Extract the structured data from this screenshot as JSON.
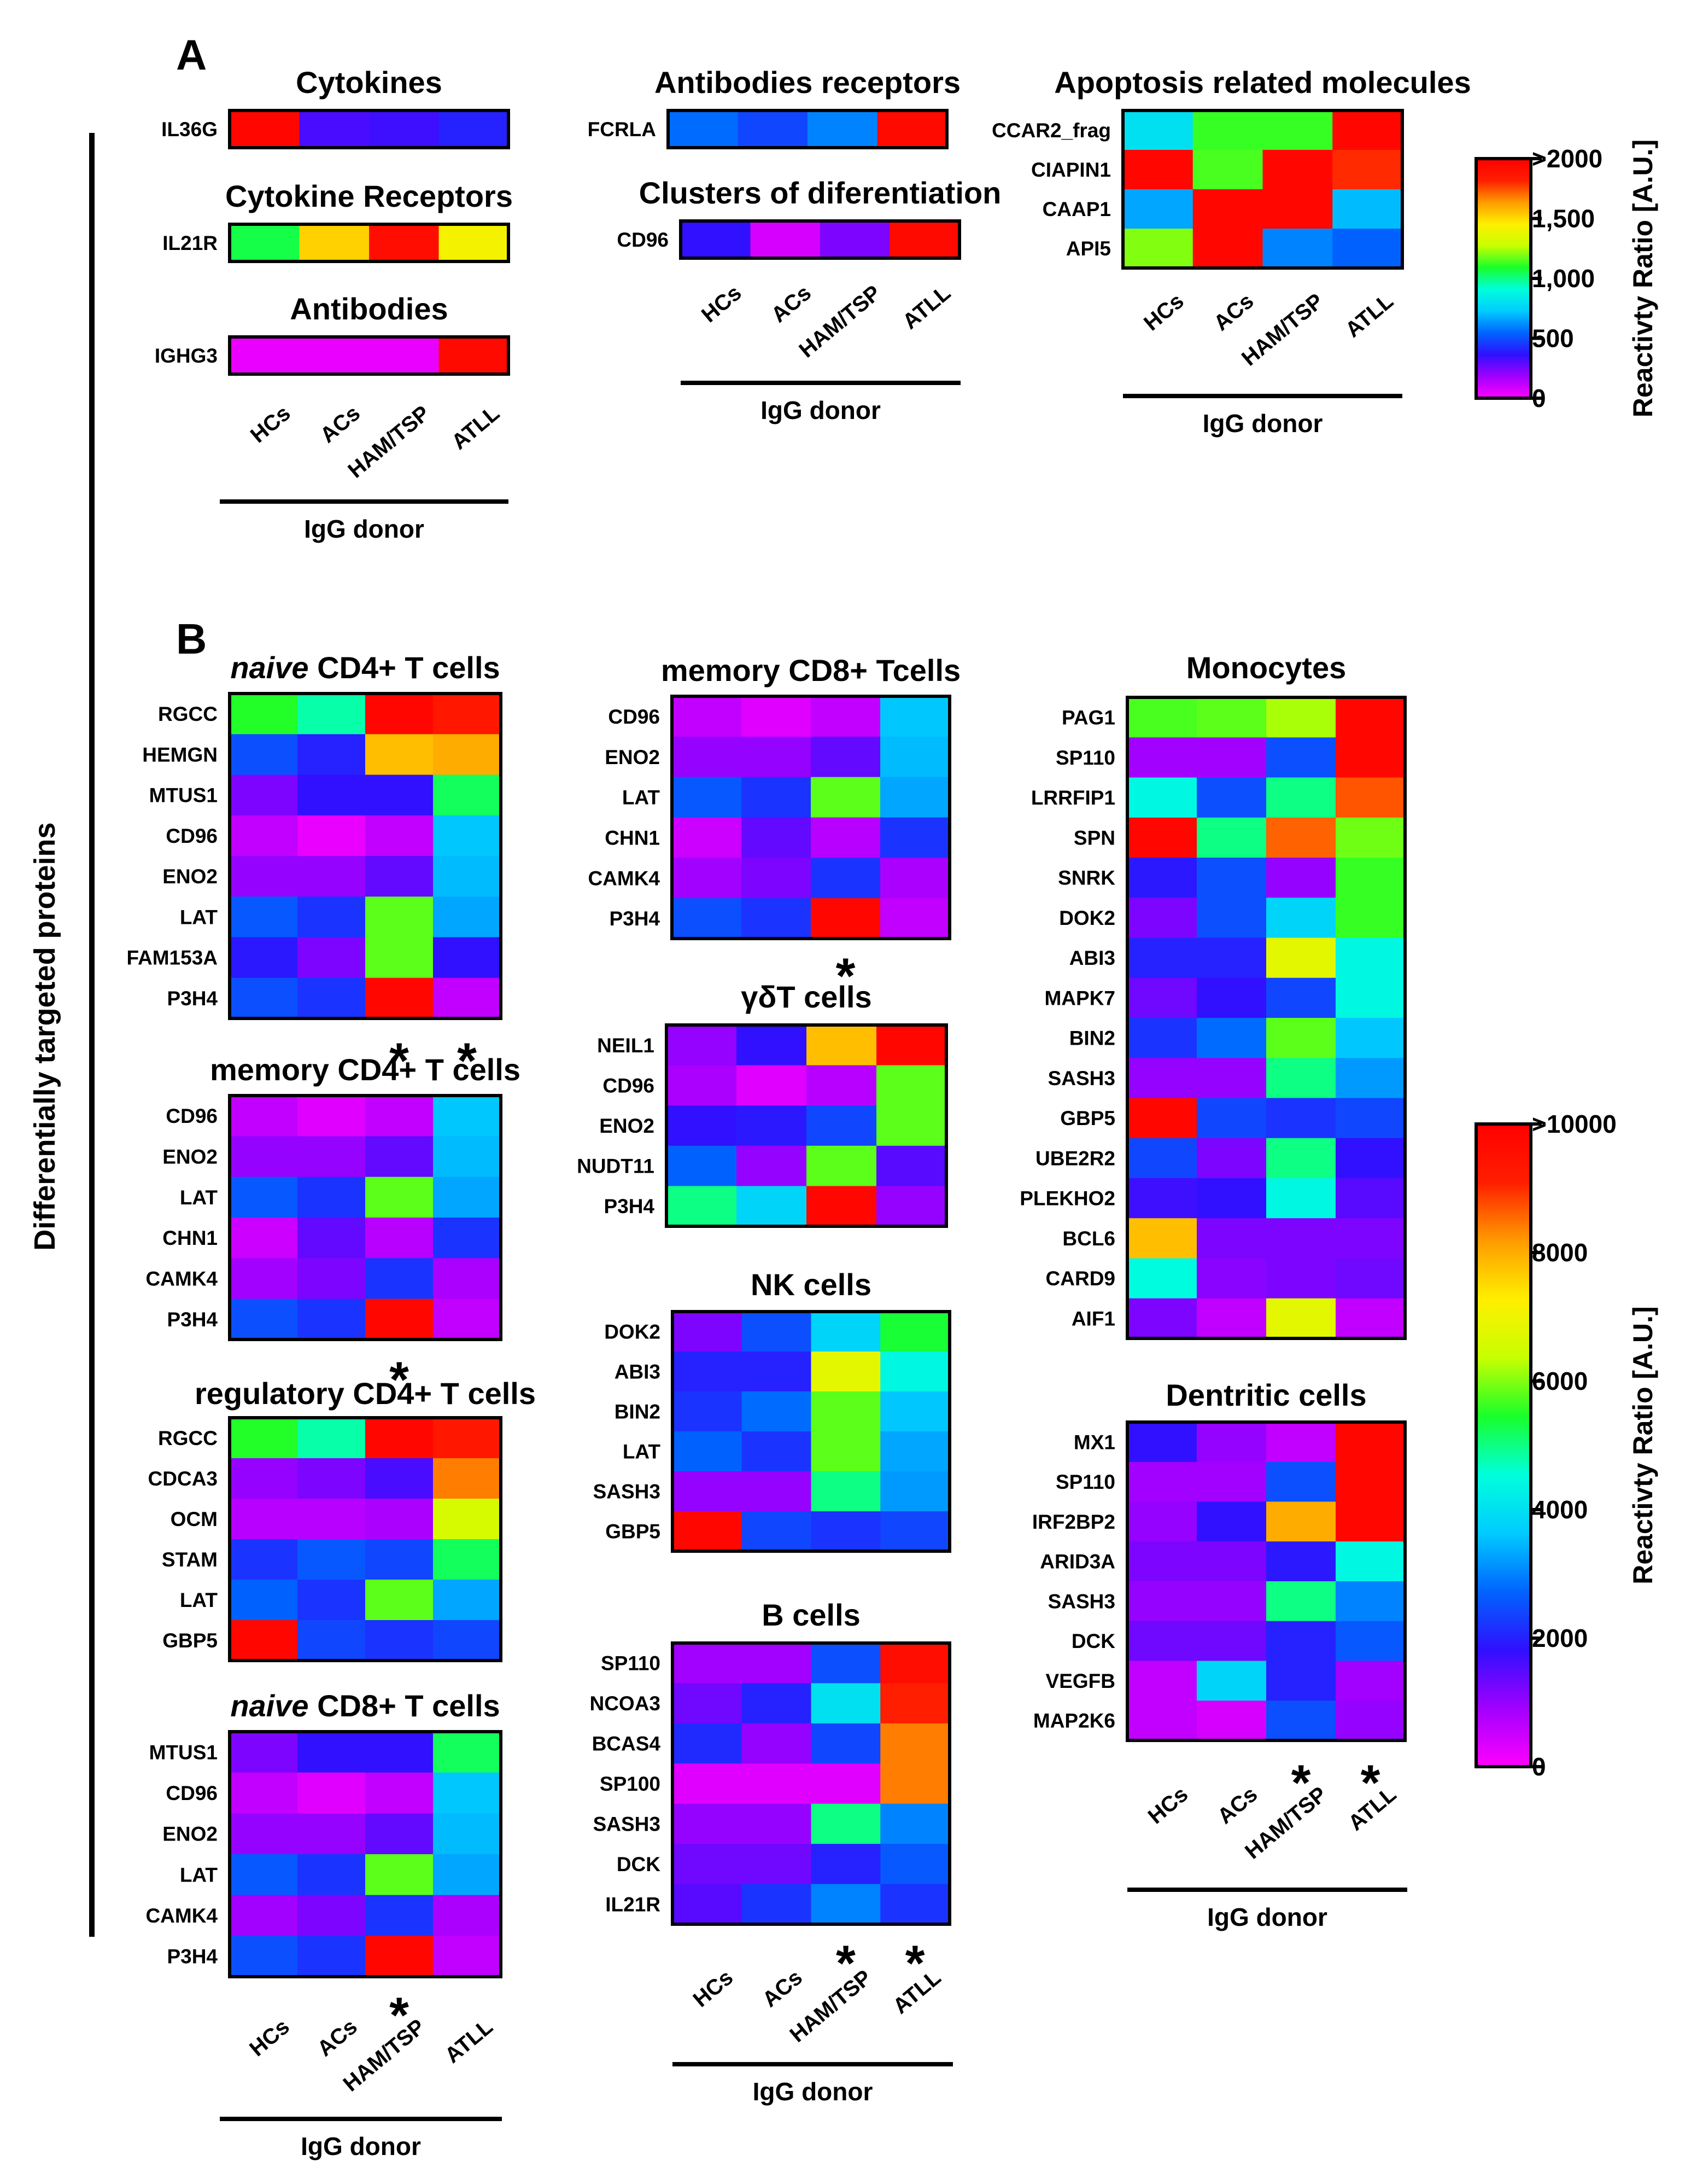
{
  "panel_labels": {
    "A": "A",
    "B": "B"
  },
  "side_label": "Differentially targeted proteins",
  "colorbars": [
    {
      "id": "cbA",
      "title": "Reactivty Ratio [A.U.]",
      "ticks": [
        ">2000",
        "1,500",
        "1,000",
        "500",
        "0"
      ]
    },
    {
      "id": "cbB",
      "title": "Reactivty Ratio [A.U.]",
      "ticks": [
        ">10000",
        "8000",
        "6000",
        "4000",
        "2000",
        "0"
      ]
    }
  ],
  "colors": {
    "stops": [
      "#ff00ff",
      "#a100ff",
      "#2f10ff",
      "#0064ff",
      "#00ccff",
      "#00ffdc",
      "#19ff2a",
      "#c8ff00",
      "#ffef00",
      "#ff9b00",
      "#ff1e00",
      "#ff0000"
    ]
  },
  "chart_data": {
    "type": "heatmap",
    "value_scale": [
      0,
      1
    ],
    "panels": [
      {
        "key": "cyt",
        "title": "Cytokines",
        "rows": [
          "IL36G"
        ],
        "values": [
          [
            0.98,
            0.16,
            0.17,
            0.2
          ]
        ]
      },
      {
        "key": "cytr",
        "title": "Cytokine Receptors",
        "rows": [
          "IL21R"
        ],
        "values": [
          [
            0.53,
            0.76,
            0.96,
            0.71
          ]
        ]
      },
      {
        "key": "ab",
        "title": "Antibodies",
        "rows": [
          "IGHG3"
        ],
        "values": [
          [
            0.02,
            0.02,
            0.02,
            0.97
          ]
        ],
        "columns": [
          "HCs",
          "ACs",
          "HAM/TSP",
          "ATLL"
        ],
        "xlabel": "IgG donor"
      },
      {
        "key": "abr",
        "title": "Antibodies receptors",
        "rows": [
          "FCRLA"
        ],
        "values": [
          [
            0.28,
            0.24,
            0.3,
            0.97
          ]
        ]
      },
      {
        "key": "cd",
        "title": "Clusters of diferentiation",
        "rows": [
          "CD96"
        ],
        "values": [
          [
            0.18,
            0.04,
            0.12,
            0.97
          ]
        ],
        "columns": [
          "HCs",
          "ACs",
          "HAM/TSP",
          "ATLL"
        ],
        "xlabel": "IgG donor"
      },
      {
        "key": "apo",
        "title": "Apoptosis related molecules",
        "rows": [
          "CCAR2_frag",
          "CIAPIN1",
          "CAAP1",
          "API5"
        ],
        "values": [
          [
            0.4,
            0.56,
            0.56,
            0.98
          ],
          [
            0.98,
            0.57,
            0.98,
            0.9
          ],
          [
            0.33,
            0.98,
            0.98,
            0.35
          ],
          [
            0.6,
            0.98,
            0.3,
            0.27
          ]
        ],
        "columns": [
          "HCs",
          "ACs",
          "HAM/TSP",
          "ATLL"
        ],
        "xlabel": "IgG donor"
      },
      {
        "key": "n4",
        "title_italic": "naive",
        "title": "CD4+ T cells",
        "rows": [
          "RGCC",
          "HEMGN",
          "MTUS1",
          "CD96",
          "ENO2",
          "LAT",
          "FAM153A",
          "P3H4"
        ],
        "values": [
          [
            0.55,
            0.48,
            0.98,
            0.93
          ],
          [
            0.25,
            0.2,
            0.78,
            0.8
          ],
          [
            0.12,
            0.18,
            0.18,
            0.52
          ],
          [
            0.06,
            0.02,
            0.06,
            0.36
          ],
          [
            0.1,
            0.1,
            0.14,
            0.35
          ],
          [
            0.26,
            0.22,
            0.58,
            0.33
          ],
          [
            0.19,
            0.12,
            0.58,
            0.18
          ],
          [
            0.25,
            0.22,
            0.98,
            0.06
          ]
        ],
        "stars": [
          "",
          "",
          "*",
          "*"
        ]
      },
      {
        "key": "m4",
        "title": "memory CD4+ T cells",
        "rows": [
          "CD96",
          "ENO2",
          "LAT",
          "CHN1",
          "CAMK4",
          "P3H4"
        ],
        "values": [
          [
            0.06,
            0.03,
            0.06,
            0.36
          ],
          [
            0.1,
            0.1,
            0.14,
            0.35
          ],
          [
            0.26,
            0.22,
            0.58,
            0.33
          ],
          [
            0.05,
            0.14,
            0.07,
            0.22
          ],
          [
            0.09,
            0.12,
            0.22,
            0.08
          ],
          [
            0.25,
            0.22,
            0.98,
            0.06
          ]
        ],
        "stars": [
          "",
          "",
          "*",
          ""
        ]
      },
      {
        "key": "r4",
        "title": "regulatory CD4+ T cells",
        "rows": [
          "RGCC",
          "CDCA3",
          "OCM",
          "STAM",
          "LAT",
          "GBP5"
        ],
        "values": [
          [
            0.55,
            0.48,
            0.98,
            0.93
          ],
          [
            0.1,
            0.12,
            0.16,
            0.84
          ],
          [
            0.07,
            0.07,
            0.08,
            0.66
          ],
          [
            0.22,
            0.26,
            0.24,
            0.52
          ],
          [
            0.27,
            0.22,
            0.58,
            0.33
          ],
          [
            0.98,
            0.24,
            0.22,
            0.24
          ]
        ]
      },
      {
        "key": "n8",
        "title_italic": "naive",
        "title": "CD8+ T cells",
        "rows": [
          "MTUS1",
          "CD96",
          "ENO2",
          "LAT",
          "CAMK4",
          "P3H4"
        ],
        "values": [
          [
            0.12,
            0.18,
            0.18,
            0.52
          ],
          [
            0.06,
            0.03,
            0.06,
            0.36
          ],
          [
            0.1,
            0.1,
            0.14,
            0.35
          ],
          [
            0.26,
            0.22,
            0.58,
            0.33
          ],
          [
            0.09,
            0.12,
            0.22,
            0.08
          ],
          [
            0.25,
            0.22,
            0.98,
            0.06
          ]
        ],
        "stars": [
          "",
          "",
          "*",
          ""
        ],
        "columns": [
          "HCs",
          "ACs",
          "HAM/TSP",
          "ATLL"
        ],
        "xlabel": "IgG donor"
      },
      {
        "key": "m8",
        "title": "memory CD8+ Tcells",
        "rows": [
          "CD96",
          "ENO2",
          "LAT",
          "CHN1",
          "CAMK4",
          "P3H4"
        ],
        "values": [
          [
            0.06,
            0.03,
            0.06,
            0.36
          ],
          [
            0.1,
            0.1,
            0.14,
            0.35
          ],
          [
            0.26,
            0.22,
            0.58,
            0.33
          ],
          [
            0.05,
            0.14,
            0.07,
            0.22
          ],
          [
            0.09,
            0.12,
            0.22,
            0.08
          ],
          [
            0.25,
            0.22,
            0.98,
            0.06
          ]
        ],
        "stars": [
          "",
          "",
          "*",
          ""
        ]
      },
      {
        "key": "gd",
        "title": "γδT cells",
        "rows": [
          "NEIL1",
          "CD96",
          "ENO2",
          "NUDT11",
          "P3H4"
        ],
        "values": [
          [
            0.1,
            0.18,
            0.78,
            0.98
          ],
          [
            0.08,
            0.03,
            0.07,
            0.58
          ],
          [
            0.18,
            0.19,
            0.24,
            0.58
          ],
          [
            0.27,
            0.1,
            0.58,
            0.15
          ],
          [
            0.5,
            0.38,
            0.98,
            0.1
          ]
        ]
      },
      {
        "key": "nk",
        "title": "NK cells",
        "rows": [
          "DOK2",
          "ABI3",
          "BIN2",
          "LAT",
          "SASH3",
          "GBP5"
        ],
        "values": [
          [
            0.12,
            0.25,
            0.38,
            0.54
          ],
          [
            0.2,
            0.2,
            0.68,
            0.44
          ],
          [
            0.22,
            0.28,
            0.58,
            0.36
          ],
          [
            0.27,
            0.22,
            0.58,
            0.33
          ],
          [
            0.1,
            0.1,
            0.5,
            0.32
          ],
          [
            0.98,
            0.24,
            0.22,
            0.24
          ]
        ]
      },
      {
        "key": "bc",
        "title": "B cells",
        "rows": [
          "SP110",
          "NCOA3",
          "BCAS4",
          "SP100",
          "SASH3",
          "DCK",
          "IL21R"
        ],
        "values": [
          [
            0.09,
            0.09,
            0.25,
            0.96
          ],
          [
            0.13,
            0.2,
            0.4,
            0.91
          ],
          [
            0.21,
            0.1,
            0.24,
            0.84
          ],
          [
            0.03,
            0.03,
            0.03,
            0.84
          ],
          [
            0.1,
            0.1,
            0.5,
            0.3
          ],
          [
            0.13,
            0.13,
            0.2,
            0.26
          ],
          [
            0.15,
            0.22,
            0.3,
            0.22
          ]
        ],
        "stars": [
          "",
          "",
          "*",
          "*"
        ],
        "columns": [
          "HCs",
          "ACs",
          "HAM/TSP",
          "ATLL"
        ],
        "xlabel": "IgG donor"
      },
      {
        "key": "mo",
        "title": "Monocytes",
        "rows": [
          "PAG1",
          "SP110",
          "LRRFIP1",
          "SPN",
          "SNRK",
          "DOK2",
          "ABI3",
          "MAPK7",
          "BIN2",
          "SASH3",
          "GBP5",
          "UBE2R2",
          "PLEKHO2",
          "BCL6",
          "CARD9",
          "AIF1"
        ],
        "values": [
          [
            0.57,
            0.58,
            0.62,
            0.98
          ],
          [
            0.09,
            0.09,
            0.25,
            0.98
          ],
          [
            0.44,
            0.25,
            0.5,
            0.87
          ],
          [
            0.98,
            0.5,
            0.86,
            0.59
          ],
          [
            0.19,
            0.25,
            0.1,
            0.56
          ],
          [
            0.12,
            0.25,
            0.38,
            0.56
          ],
          [
            0.2,
            0.2,
            0.68,
            0.44
          ],
          [
            0.13,
            0.18,
            0.24,
            0.44
          ],
          [
            0.22,
            0.28,
            0.58,
            0.36
          ],
          [
            0.1,
            0.1,
            0.5,
            0.32
          ],
          [
            0.98,
            0.24,
            0.22,
            0.24
          ],
          [
            0.24,
            0.12,
            0.5,
            0.18
          ],
          [
            0.17,
            0.18,
            0.44,
            0.15
          ],
          [
            0.78,
            0.12,
            0.12,
            0.12
          ],
          [
            0.45,
            0.11,
            0.12,
            0.13
          ],
          [
            0.12,
            0.06,
            0.68,
            0.06
          ]
        ]
      },
      {
        "key": "dc",
        "title": "Dentritic cells",
        "rows": [
          "MX1",
          "SP110",
          "IRF2BP2",
          "ARID3A",
          "SASH3",
          "DCK",
          "VEGFB",
          "MAP2K6"
        ],
        "values": [
          [
            0.18,
            0.1,
            0.06,
            0.98
          ],
          [
            0.09,
            0.09,
            0.25,
            0.98
          ],
          [
            0.1,
            0.18,
            0.8,
            0.98
          ],
          [
            0.12,
            0.12,
            0.19,
            0.44
          ],
          [
            0.1,
            0.1,
            0.5,
            0.3
          ],
          [
            0.13,
            0.13,
            0.2,
            0.26
          ],
          [
            0.06,
            0.38,
            0.2,
            0.09
          ],
          [
            0.06,
            0.04,
            0.25,
            0.1
          ]
        ],
        "stars": [
          "",
          "",
          "*",
          "*"
        ],
        "columns": [
          "HCs",
          "ACs",
          "HAM/TSP",
          "ATLL"
        ],
        "xlabel": "IgG donor"
      }
    ]
  }
}
